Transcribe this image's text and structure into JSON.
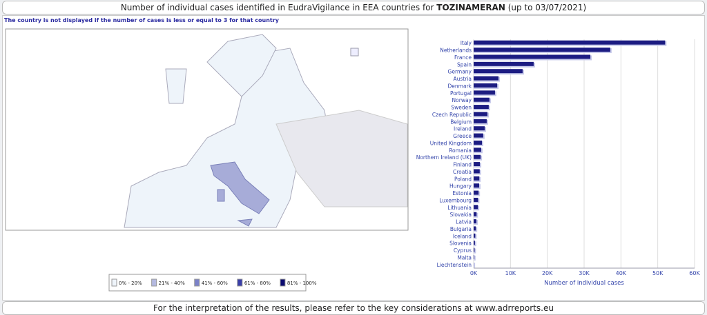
{
  "header": {
    "title_prefix": "Number of individual cases identified in EudraVigilance in EEA countries for",
    "title_bold": "TOZINAMERAN",
    "title_suffix": "(up to 03/07/2021)"
  },
  "note": "The country is not displayed if the number of cases is less or equal to 3 for that country",
  "map_legend": [
    {
      "label": "0% - 20%",
      "color": "#eef4fa"
    },
    {
      "label": "21% - 40%",
      "color": "#b4b9e0"
    },
    {
      "label": "41% - 60%",
      "color": "#7b82c8"
    },
    {
      "label": "61% - 80%",
      "color": "#3a3fa8"
    },
    {
      "label": "81% - 100%",
      "color": "#0a0a70"
    }
  ],
  "chart_data": {
    "type": "hbar",
    "x_label": "Number of individual cases",
    "color": "#1c1c82",
    "categories": [
      "Italy",
      "Netherlands",
      "France",
      "Spain",
      "Germany",
      "Austria",
      "Denmark",
      "Portugal",
      "Norway",
      "Sweden",
      "Czech Republic",
      "Belgium",
      "Ireland",
      "Greece",
      "United Kingdom",
      "Romania",
      "Northern Ireland (UK)",
      "Finland",
      "Croatia",
      "Poland",
      "Hungary",
      "Estonia",
      "Luxembourg",
      "Lithuania",
      "Slovakia",
      "Latvia",
      "Bulgaria",
      "Iceland",
      "Slovenia",
      "Cyprus",
      "Malta",
      "Liechtenstein"
    ],
    "values": [
      52000,
      37100,
      31700,
      16300,
      13300,
      6750,
      6400,
      5800,
      4300,
      4100,
      3750,
      3550,
      3000,
      2600,
      2250,
      2050,
      1900,
      1700,
      1650,
      1550,
      1500,
      1350,
      1200,
      1150,
      800,
      750,
      600,
      450,
      350,
      250,
      150,
      20
    ],
    "xlim": [
      0,
      60000
    ],
    "xticks": [
      {
        "value": 0,
        "label": "0K"
      },
      {
        "value": 10000,
        "label": "10K"
      },
      {
        "value": 20000,
        "label": "20K"
      },
      {
        "value": 30000,
        "label": "30K"
      },
      {
        "value": 40000,
        "label": "40K"
      },
      {
        "value": 50000,
        "label": "50K"
      },
      {
        "value": 60000,
        "label": "60K"
      }
    ]
  },
  "footer": "For the interpretation of the results, please refer to the key considerations at www.adrreports.eu"
}
